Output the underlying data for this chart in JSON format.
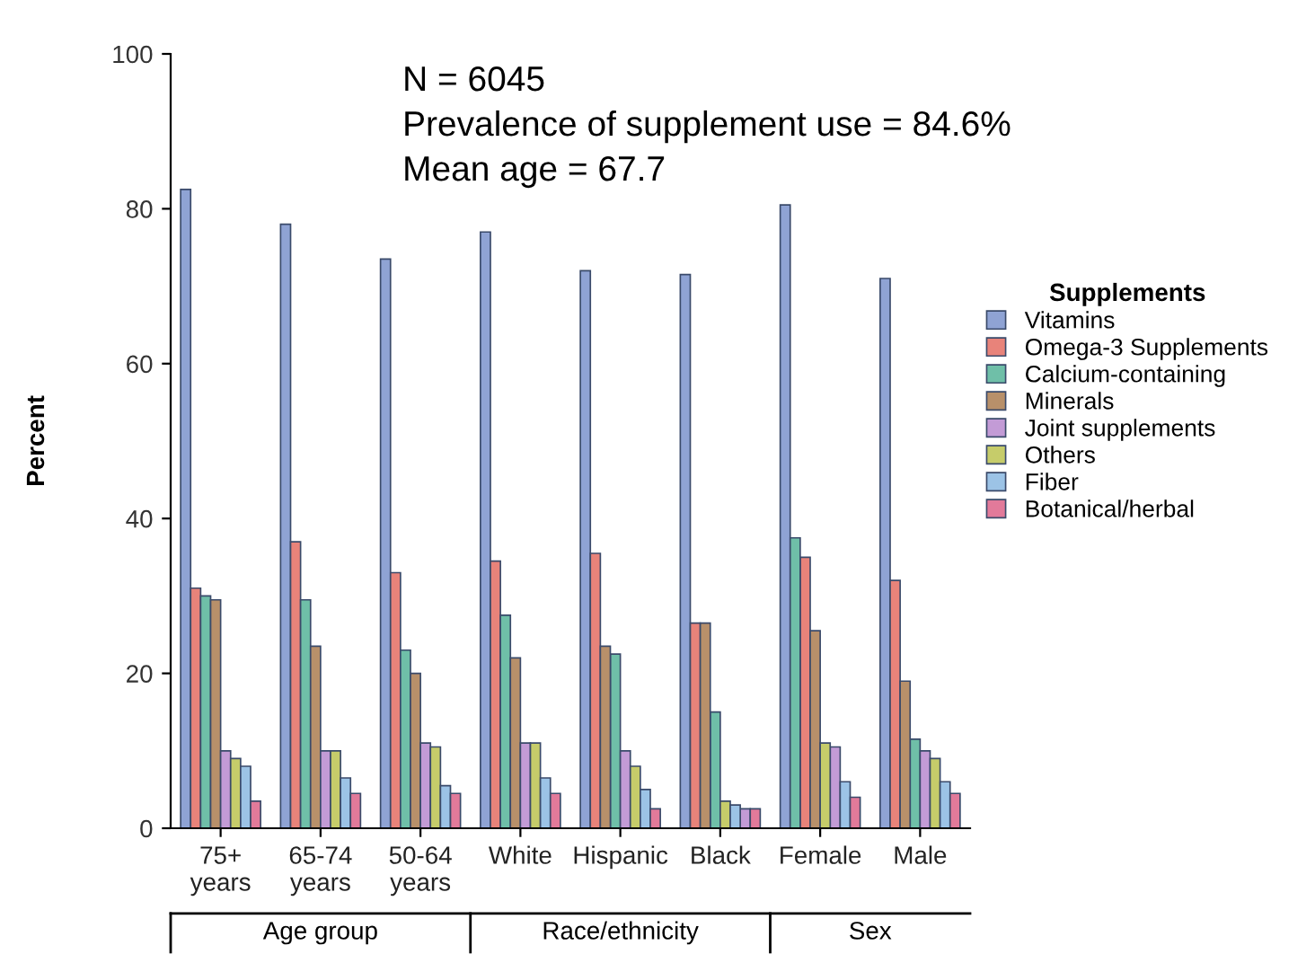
{
  "chart_data": {
    "type": "bar",
    "ylabel": "Percent",
    "legend_title": "Supplements",
    "legend": "right",
    "grid": false,
    "categories": [
      "75+\nyears",
      "65-74\nyears",
      "50-64\nyears",
      "White",
      "Hispanic",
      "Black",
      "Female",
      "Male"
    ],
    "ylim": [
      0,
      100
    ],
    "yticks": [
      0,
      20,
      40,
      60,
      80,
      100
    ],
    "annotations": [
      "N = 6045",
      "Prevalence of supplement use = 84.6%",
      "Mean age = 67.7",
      "Age group",
      "Race/ethnicity",
      "Sex"
    ],
    "series": [
      {
        "name": "Vitamins",
        "color": "#8fa3d4",
        "values": [
          82.5,
          78,
          73.5,
          77,
          72,
          71.5,
          80.5,
          71
        ]
      },
      {
        "name": "Omega-3 Supplements",
        "color": "#e8837a",
        "values": [
          31,
          37,
          33,
          34.5,
          35.5,
          26.5,
          35,
          32
        ]
      },
      {
        "name": "Calcium-containing",
        "color": "#6fbfa8",
        "values": [
          30,
          29.5,
          23,
          27.5,
          22.5,
          15,
          37.5,
          11.5
        ]
      },
      {
        "name": "Minerals",
        "color": "#b8906a",
        "values": [
          29.5,
          23.5,
          20,
          22,
          23.5,
          26.5,
          25.5,
          19
        ]
      },
      {
        "name": "Joint supplements",
        "color": "#c39bd6",
        "values": [
          10,
          10,
          11,
          11,
          10,
          2.5,
          10.5,
          10
        ]
      },
      {
        "name": "Others",
        "color": "#c6cc6a",
        "values": [
          9,
          10,
          10.5,
          11,
          8,
          3.5,
          11,
          9
        ]
      },
      {
        "name": "Fiber",
        "color": "#9cc3e6",
        "values": [
          8,
          6.5,
          5.5,
          6.5,
          5,
          3,
          6,
          6
        ]
      },
      {
        "name": "Botanical/herbal",
        "color": "#e27a9a",
        "values": [
          3.5,
          4.5,
          4.5,
          4.5,
          2.5,
          2.5,
          4,
          4.5
        ]
      }
    ]
  }
}
